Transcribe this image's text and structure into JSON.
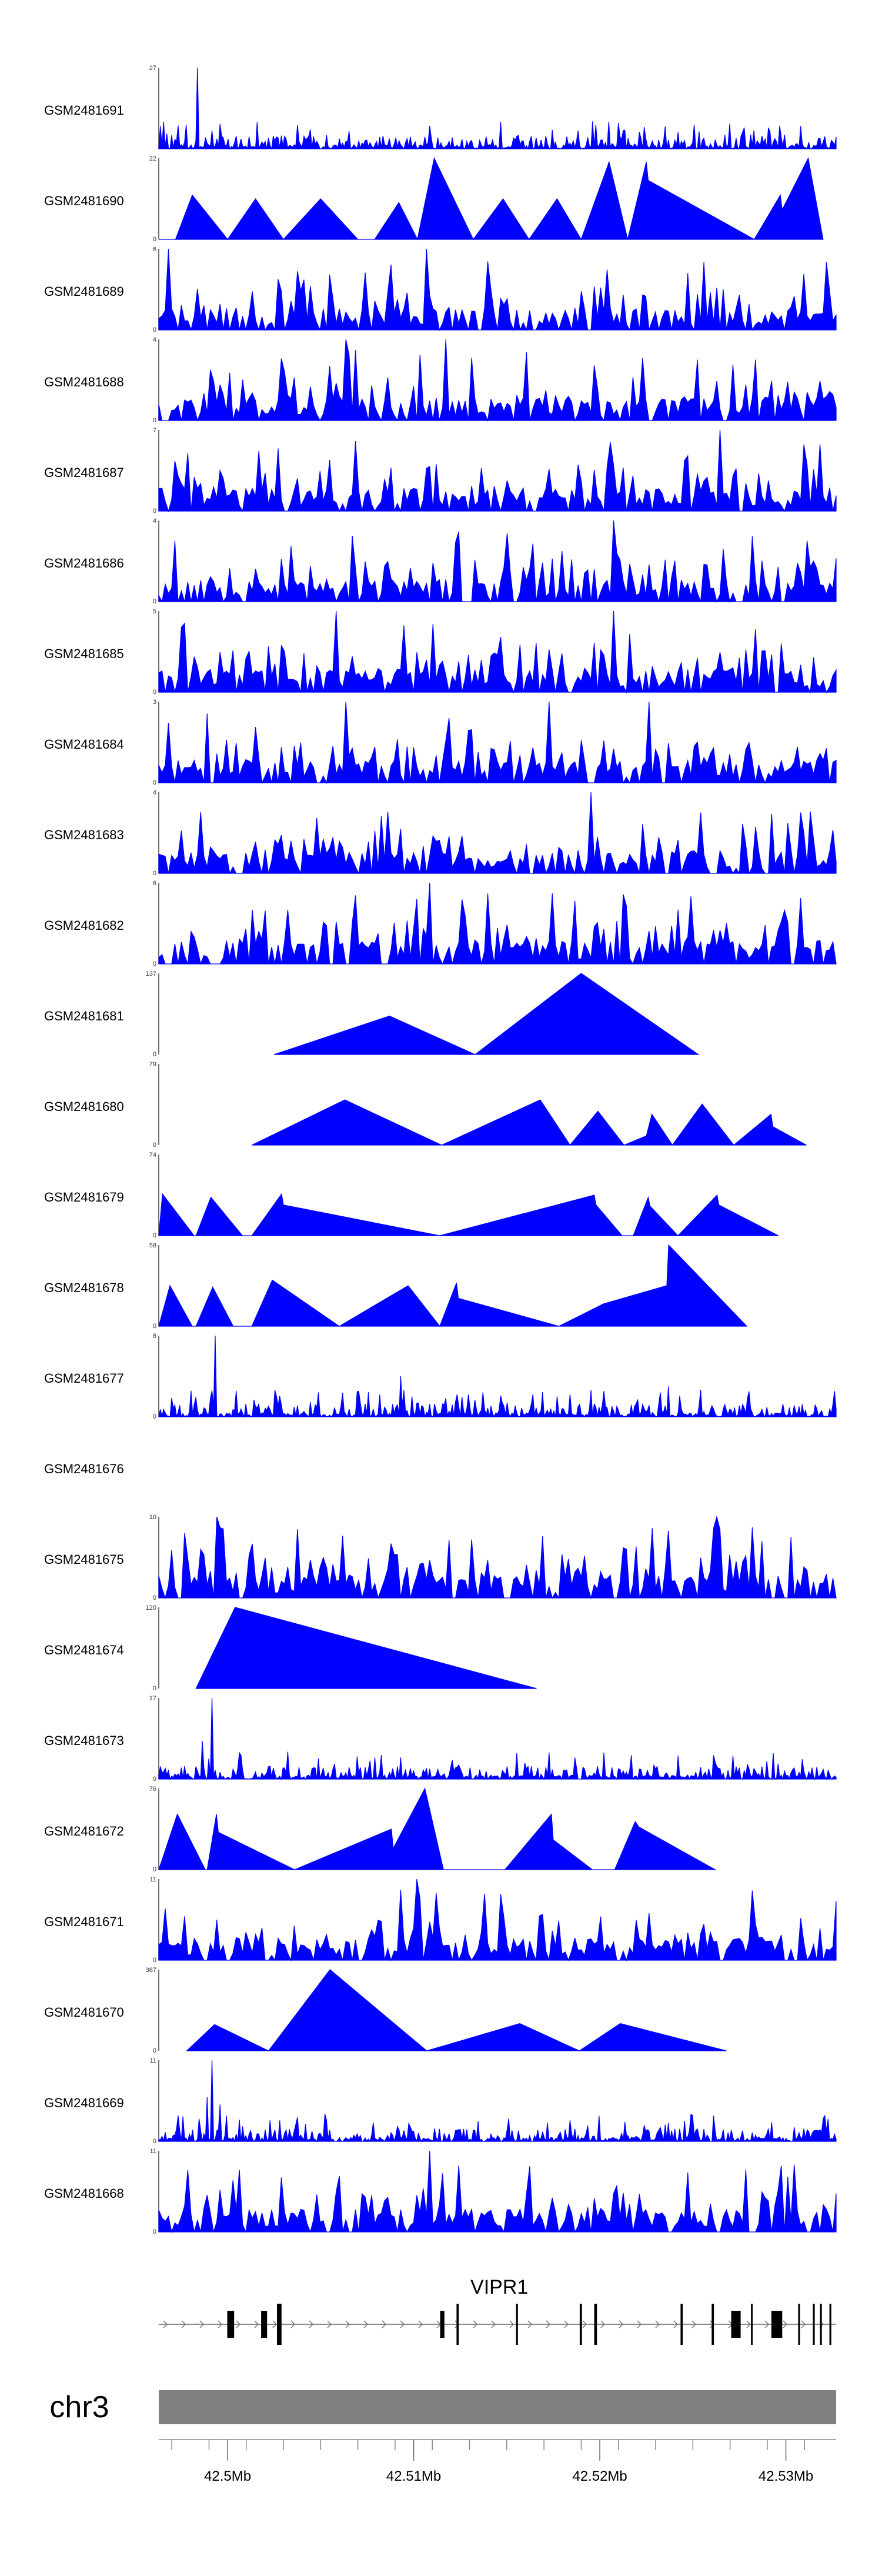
{
  "chart_data": {
    "type": "area",
    "title": "",
    "xlabel": "",
    "ylabel": "",
    "chromosome": "chr3",
    "gene": "VIPR1",
    "x_range_mb": [
      42.4963,
      42.5327
    ],
    "x_ticks": [
      42.5,
      42.51,
      42.52,
      42.53
    ],
    "x_tick_labels": [
      "42.5Mb",
      "42.51Mb",
      "42.52Mb",
      "42.53Mb"
    ],
    "tracks": [
      {
        "name": "GSM2481691",
        "ymax": 27,
        "min_label": "",
        "style": "dense",
        "seed": 11,
        "spikes": [
          [
            42.4984,
            27
          ],
          [
            42.4966,
            9
          ],
          [
            42.4978,
            8
          ],
          [
            42.5291,
            7
          ],
          [
            42.4992,
            6
          ]
        ]
      },
      {
        "name": "GSM2481690",
        "ymax": 22,
        "min_label": "0",
        "style": "tri",
        "points": [
          [
            42.4963,
            0
          ],
          [
            42.4972,
            0
          ],
          [
            42.4981,
            12
          ],
          [
            42.5,
            0
          ],
          [
            42.5015,
            11
          ],
          [
            42.503,
            0
          ],
          [
            42.505,
            11
          ],
          [
            42.507,
            0
          ],
          [
            42.5079,
            0
          ],
          [
            42.5092,
            10
          ],
          [
            42.5102,
            0
          ],
          [
            42.5111,
            22
          ],
          [
            42.5132,
            0
          ],
          [
            42.5148,
            11
          ],
          [
            42.5162,
            0
          ],
          [
            42.5177,
            11
          ],
          [
            42.519,
            0
          ],
          [
            42.5205,
            21
          ],
          [
            42.5215,
            0
          ],
          [
            42.5225,
            21
          ],
          [
            42.5226,
            16
          ],
          [
            42.5283,
            0
          ],
          [
            42.5297,
            12
          ],
          [
            42.5298,
            8
          ],
          [
            42.5312,
            22
          ],
          [
            42.532,
            0
          ]
        ]
      },
      {
        "name": "GSM2481689",
        "ymax": 6,
        "min_label": "0",
        "style": "spiky",
        "seed": 23,
        "spikes": [
          [
            42.4968,
            6
          ],
          [
            42.5107,
            6
          ],
          [
            42.5256,
            5
          ],
          [
            42.5322,
            5
          ]
        ]
      },
      {
        "name": "GSM2481688",
        "ymax": 4,
        "min_label": "0",
        "style": "spiky",
        "seed": 37,
        "spikes": [
          [
            42.5064,
            4
          ],
          [
            42.5118,
            4
          ],
          [
            42.5253,
            3
          ],
          [
            42.5283,
            3
          ]
        ]
      },
      {
        "name": "GSM2481687",
        "ymax": 7,
        "min_label": "0",
        "style": "spiky",
        "seed": 41,
        "spikes": [
          [
            42.5265,
            7
          ],
          [
            42.5312,
            4
          ],
          [
            42.5189,
            4
          ]
        ]
      },
      {
        "name": "GSM2481686",
        "ymax": 4,
        "min_label": "0",
        "style": "spiky",
        "seed": 53,
        "spikes": [
          [
            42.5208,
            4
          ],
          [
            42.5312,
            3
          ],
          [
            42.4972,
            3
          ]
        ]
      },
      {
        "name": "GSM2481685",
        "ymax": 5,
        "min_label": "0",
        "style": "spiky",
        "seed": 61,
        "spikes": [
          [
            42.4975,
            4
          ],
          [
            42.5059,
            5
          ],
          [
            42.5208,
            5
          ],
          [
            42.5297,
            3
          ]
        ]
      },
      {
        "name": "GSM2481684",
        "ymax": 3,
        "min_label": "0",
        "style": "spiky",
        "seed": 71,
        "spikes": [
          [
            42.5063,
            3
          ],
          [
            42.5172,
            3
          ],
          [
            42.5227,
            3
          ]
        ]
      },
      {
        "name": "GSM2481683",
        "ymax": 4,
        "min_label": "0",
        "style": "spiky",
        "seed": 83,
        "spikes": [
          [
            42.5195,
            4
          ],
          [
            42.5254,
            3
          ],
          [
            42.5308,
            3
          ]
        ]
      },
      {
        "name": "GSM2481682",
        "ymax": 6,
        "min_label": "0",
        "style": "spiky",
        "seed": 97,
        "spikes": [
          [
            42.5109,
            6
          ],
          [
            42.5014,
            4
          ],
          [
            42.5033,
            4
          ],
          [
            42.5268,
            3
          ]
        ]
      },
      {
        "name": "GSM2481681",
        "ymax": 137,
        "min_label": "0",
        "style": "tri",
        "points": [
          [
            42.5025,
            0
          ],
          [
            42.5087,
            65
          ],
          [
            42.5133,
            0
          ],
          [
            42.519,
            137
          ],
          [
            42.5253,
            0
          ]
        ]
      },
      {
        "name": "GSM2481680",
        "ymax": 79,
        "min_label": "0",
        "style": "tri",
        "points": [
          [
            42.5013,
            0
          ],
          [
            42.5063,
            44
          ],
          [
            42.5115,
            0
          ],
          [
            42.5168,
            44
          ],
          [
            42.5184,
            0
          ],
          [
            42.5199,
            33
          ],
          [
            42.5213,
            0
          ],
          [
            42.5225,
            9
          ],
          [
            42.5228,
            30
          ],
          [
            42.5239,
            0
          ],
          [
            42.5255,
            40
          ],
          [
            42.5272,
            0
          ],
          [
            42.5292,
            30
          ],
          [
            42.5293,
            18
          ],
          [
            42.5311,
            0
          ]
        ]
      },
      {
        "name": "GSM2481679",
        "ymax": 74,
        "min_label": "0",
        "style": "tri",
        "points": [
          [
            42.4963,
            0
          ],
          [
            42.4965,
            38
          ],
          [
            42.4982,
            0
          ],
          [
            42.4983,
            0
          ],
          [
            42.4991,
            35
          ],
          [
            42.5008,
            0
          ],
          [
            42.5013,
            0
          ],
          [
            42.5029,
            38
          ],
          [
            42.503,
            28
          ],
          [
            42.5114,
            0
          ],
          [
            42.5197,
            37
          ],
          [
            42.5198,
            28
          ],
          [
            42.5212,
            0
          ],
          [
            42.5218,
            0
          ],
          [
            42.5226,
            35
          ],
          [
            42.5227,
            27
          ],
          [
            42.5242,
            0
          ],
          [
            42.5263,
            37
          ],
          [
            42.5264,
            28
          ],
          [
            42.5296,
            0
          ]
        ]
      },
      {
        "name": "GSM2481678",
        "ymax": 58,
        "min_label": "0",
        "style": "tri",
        "points": [
          [
            42.4963,
            0
          ],
          [
            42.4969,
            29
          ],
          [
            42.4981,
            0
          ],
          [
            42.4983,
            0
          ],
          [
            42.4992,
            28
          ],
          [
            42.5003,
            0
          ],
          [
            42.5013,
            0
          ],
          [
            42.5024,
            33
          ],
          [
            42.506,
            0
          ],
          [
            42.5097,
            29
          ],
          [
            42.5114,
            0
          ],
          [
            42.5123,
            31
          ],
          [
            42.5124,
            20
          ],
          [
            42.5178,
            0
          ],
          [
            42.5202,
            16
          ],
          [
            42.5236,
            29
          ],
          [
            42.5237,
            58
          ],
          [
            42.5279,
            0
          ]
        ]
      },
      {
        "name": "GSM2481677",
        "ymax": 8,
        "min_label": "0",
        "style": "dense",
        "seed": 131,
        "spikes": [
          [
            42.4993,
            8
          ],
          [
            42.5093,
            4
          ],
          [
            42.5237,
            3
          ]
        ]
      },
      {
        "name": "GSM2481676",
        "ymax": null,
        "min_label": "",
        "style": "empty"
      },
      {
        "name": "GSM2481675",
        "ymax": 10,
        "min_label": "0",
        "style": "spiky",
        "seed": 151,
        "spikes": [
          [
            42.4994,
            10
          ],
          [
            42.4976,
            8
          ],
          [
            42.4985,
            6
          ],
          [
            42.5263,
            10
          ],
          [
            42.5287,
            7
          ],
          [
            42.5215,
            6
          ]
        ]
      },
      {
        "name": "GSM2481674",
        "ymax": 120,
        "min_label": "0",
        "style": "tri",
        "points": [
          [
            42.4983,
            0
          ],
          [
            42.5004,
            120
          ],
          [
            42.5166,
            0
          ]
        ]
      },
      {
        "name": "GSM2481673",
        "ymax": 17,
        "min_label": "0",
        "style": "dense",
        "seed": 173,
        "spikes": [
          [
            42.4992,
            17
          ],
          [
            42.4986,
            8
          ],
          [
            42.5007,
            5
          ]
        ]
      },
      {
        "name": "GSM2481672",
        "ymax": 76,
        "min_label": "0",
        "style": "tri",
        "points": [
          [
            42.4963,
            0
          ],
          [
            42.4973,
            52
          ],
          [
            42.4988,
            0
          ],
          [
            42.4989,
            0
          ],
          [
            42.4994,
            52
          ],
          [
            42.4995,
            35
          ],
          [
            42.5036,
            0
          ],
          [
            42.5088,
            38
          ],
          [
            42.5089,
            20
          ],
          [
            42.5106,
            76
          ],
          [
            42.5116,
            0
          ],
          [
            42.5149,
            0
          ],
          [
            42.5174,
            52
          ],
          [
            42.5175,
            28
          ],
          [
            42.5196,
            0
          ],
          [
            42.5208,
            0
          ],
          [
            42.5219,
            45
          ],
          [
            42.5221,
            40
          ],
          [
            42.5262,
            0
          ]
        ]
      },
      {
        "name": "GSM2481671",
        "ymax": 11,
        "min_label": "0",
        "style": "spiky",
        "seed": 191,
        "spikes": [
          [
            42.5102,
            11
          ],
          [
            42.4966,
            7
          ],
          [
            42.5327,
            8
          ],
          [
            42.5168,
            6
          ]
        ]
      },
      {
        "name": "GSM2481670",
        "ymax": 387,
        "min_label": "0",
        "style": "tri",
        "points": [
          [
            42.4978,
            0
          ],
          [
            42.4993,
            125
          ],
          [
            42.5022,
            0
          ],
          [
            42.5055,
            387
          ],
          [
            42.5107,
            0
          ],
          [
            42.5157,
            130
          ],
          [
            42.5189,
            0
          ],
          [
            42.5211,
            130
          ],
          [
            42.5268,
            0
          ]
        ]
      },
      {
        "name": "GSM2481669",
        "ymax": 11,
        "min_label": "0",
        "style": "dense",
        "seed": 223,
        "spikes": [
          [
            42.4992,
            11
          ],
          [
            42.4989,
            6
          ],
          [
            42.4996,
            5
          ]
        ]
      },
      {
        "name": "GSM2481668",
        "ymax": 11,
        "min_label": "0",
        "style": "spiky",
        "seed": 239,
        "spikes": [
          [
            42.5003,
            7
          ],
          [
            42.5109,
            11
          ],
          [
            42.5124,
            9
          ],
          [
            42.5297,
            9
          ]
        ]
      }
    ],
    "gene_structure": {
      "strand": "+",
      "start": 42.4963,
      "end": 42.5327,
      "exons": [
        [
          42.49998,
          42.50035
        ],
        [
          42.5018,
          42.50212
        ],
        [
          42.50265,
          42.50285
        ],
        [
          42.50275,
          42.5029
        ],
        [
          42.51142,
          42.51165
        ],
        [
          42.5123,
          42.51242
        ],
        [
          42.5155,
          42.5156
        ],
        [
          42.51892,
          42.51904
        ],
        [
          42.5197,
          42.51985
        ],
        [
          42.52434,
          42.52446
        ],
        [
          42.52601,
          42.52613
        ],
        [
          42.52706,
          42.52757
        ],
        [
          42.52812,
          42.52819
        ],
        [
          42.52922,
          42.5298
        ],
        [
          42.53066,
          42.53076
        ],
        [
          42.53145,
          42.53155
        ],
        [
          42.53183,
          42.53193
        ],
        [
          42.53234,
          42.53244
        ]
      ]
    }
  }
}
